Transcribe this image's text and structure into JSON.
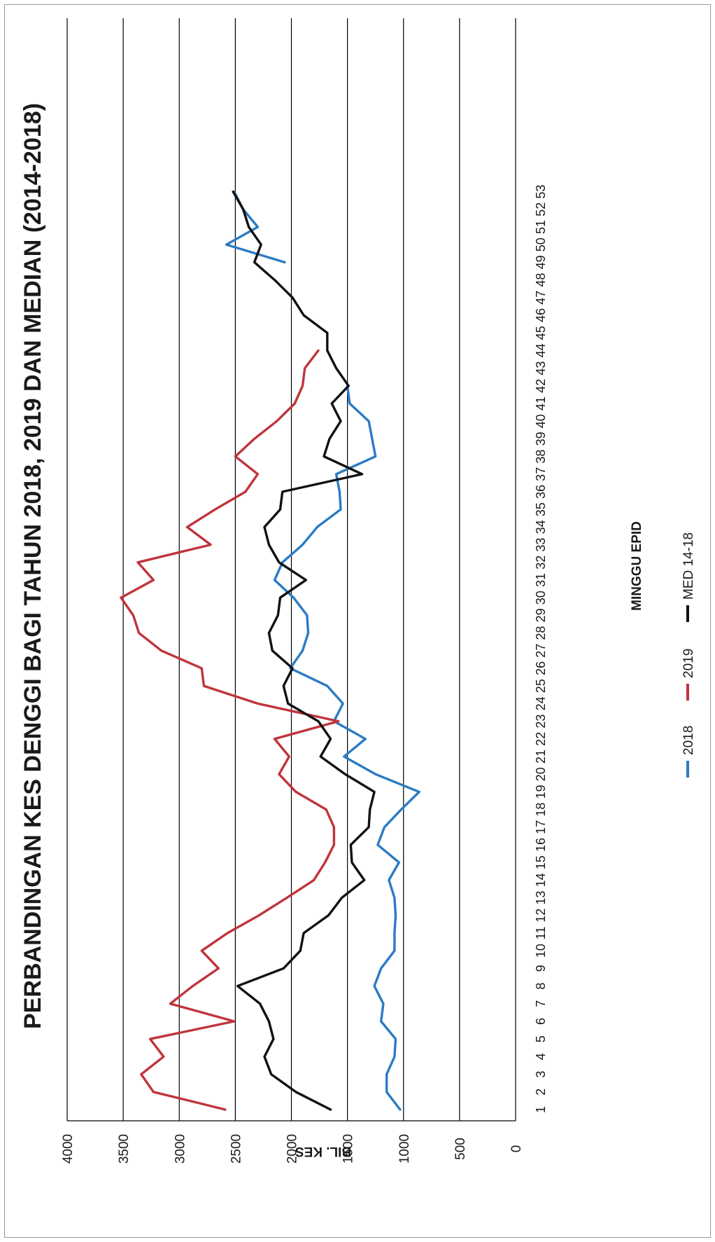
{
  "chart_data": {
    "type": "line",
    "title": "PERBANDINGAN KES DENGGI BAGI TAHUN 2018, 2019 DAN MEDIAN (2014-2018)",
    "xlabel": "MINGGU EPID",
    "ylabel": "BIL. KES",
    "ylim": [
      0,
      4000
    ],
    "yticks": [
      0,
      500,
      1000,
      1500,
      2000,
      2500,
      3000,
      3500,
      4000
    ],
    "grid": true,
    "legend_position": "bottom",
    "orientation": "rotated-90-counterclockwise",
    "x": [
      1,
      2,
      3,
      4,
      5,
      6,
      7,
      8,
      9,
      10,
      11,
      12,
      13,
      14,
      15,
      16,
      17,
      18,
      19,
      20,
      21,
      22,
      23,
      24,
      25,
      26,
      27,
      28,
      29,
      30,
      31,
      32,
      33,
      34,
      35,
      36,
      37,
      38,
      39,
      40,
      41,
      42,
      43,
      44,
      45,
      46,
      47,
      48,
      49,
      50,
      51,
      52,
      53
    ],
    "series": [
      {
        "name": "2018",
        "color": "#2b7bc4",
        "values": [
          1030,
          1150,
          1150,
          1080,
          1070,
          1200,
          1180,
          1260,
          1200,
          1080,
          1080,
          1070,
          1080,
          1130,
          1040,
          1230,
          1170,
          1020,
          860,
          1250,
          1530,
          1340,
          1620,
          1540,
          1680,
          2010,
          1900,
          1850,
          1860,
          1980,
          2150,
          2080,
          1900,
          1770,
          1560,
          1570,
          1600,
          1250,
          1280,
          1310,
          1480,
          1500,
          null,
          null,
          null,
          null,
          null,
          null,
          2060,
          2580,
          2300,
          2430,
          2510
        ],
        "note_week_gap": "weeks 43-48 not drawn"
      },
      {
        "name": "2019",
        "color": "#c0343c",
        "values": [
          2590,
          3230,
          3340,
          3140,
          3260,
          2510,
          3080,
          2880,
          2650,
          2800,
          2570,
          2290,
          2040,
          1800,
          1700,
          1620,
          1620,
          1690,
          1960,
          2110,
          2020,
          2150,
          1580,
          2300,
          2780,
          2800,
          3160,
          3360,
          3410,
          3520,
          3230,
          3370,
          2720,
          2930,
          2680,
          2410,
          2300,
          2500,
          2330,
          2130,
          1970,
          1900,
          1880,
          1760,
          null,
          null,
          null,
          null,
          null,
          null,
          null,
          null,
          null
        ]
      },
      {
        "name": "MED 14-18",
        "color": "#111111",
        "values": [
          1650,
          1960,
          2180,
          2240,
          2160,
          2200,
          2280,
          2480,
          2070,
          1920,
          1890,
          1670,
          1550,
          1350,
          1460,
          1470,
          1310,
          1300,
          1260,
          1520,
          1740,
          1650,
          1760,
          2030,
          2070,
          1990,
          2170,
          2200,
          2120,
          2100,
          1870,
          2110,
          2200,
          2240,
          2100,
          2080,
          1370,
          1710,
          1660,
          1560,
          1640,
          1490,
          1600,
          1680,
          1680,
          1890,
          1990,
          2150,
          2330,
          2270,
          2380,
          2430,
          2520
        ]
      }
    ]
  },
  "legend": {
    "items": [
      {
        "label": "2018",
        "color": "#2b7bc4"
      },
      {
        "label": "2019",
        "color": "#c0343c"
      },
      {
        "label": "MED 14-18",
        "color": "#111111"
      }
    ]
  }
}
